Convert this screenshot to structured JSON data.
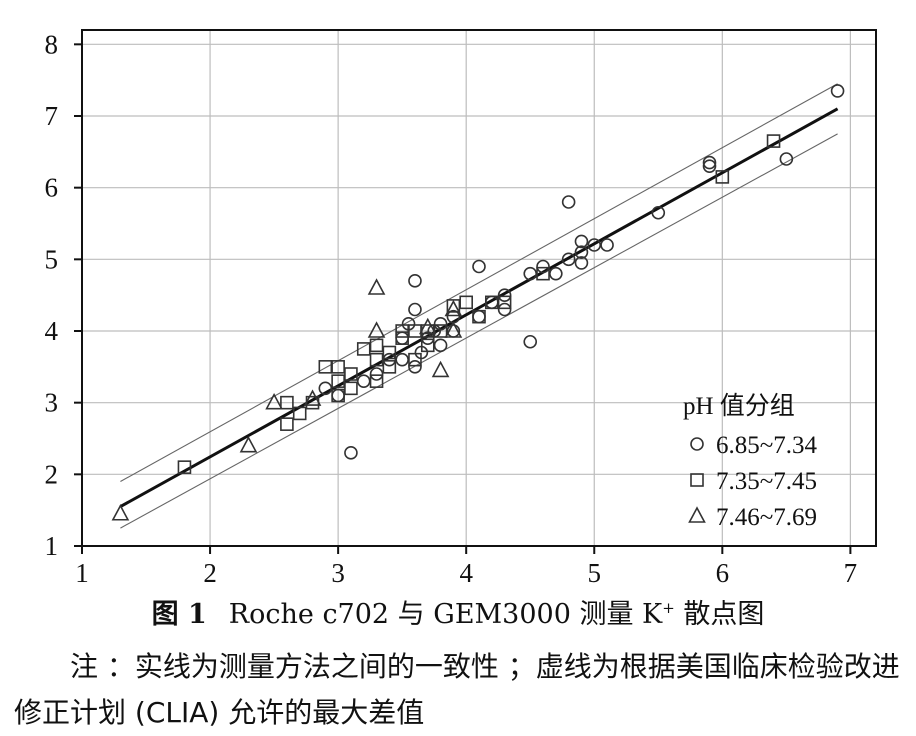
{
  "chart_data": {
    "type": "scatter",
    "xlim": [
      1,
      7.2
    ],
    "ylim": [
      1,
      8.2
    ],
    "x_ticks": [
      "1",
      "2",
      "3",
      "4",
      "5",
      "6",
      "7"
    ],
    "y_ticks": [
      "1",
      "2",
      "3",
      "4",
      "5",
      "6",
      "7",
      "8"
    ],
    "grid": true,
    "legend_position": "bottom-right",
    "legend_title": "pH 值分组",
    "series": [
      {
        "name": "6.85~7.34",
        "marker": "circle",
        "points": [
          [
            2.9,
            3.2
          ],
          [
            3.0,
            3.1
          ],
          [
            3.1,
            2.3
          ],
          [
            3.2,
            3.3
          ],
          [
            3.3,
            3.4
          ],
          [
            3.4,
            3.6
          ],
          [
            3.5,
            3.9
          ],
          [
            3.5,
            3.6
          ],
          [
            3.55,
            4.1
          ],
          [
            3.6,
            4.3
          ],
          [
            3.6,
            4.7
          ],
          [
            3.6,
            3.5
          ],
          [
            3.65,
            3.7
          ],
          [
            3.7,
            3.9
          ],
          [
            3.75,
            4.0
          ],
          [
            3.8,
            4.1
          ],
          [
            3.8,
            3.8
          ],
          [
            3.9,
            4.0
          ],
          [
            3.9,
            4.2
          ],
          [
            4.1,
            4.9
          ],
          [
            4.1,
            4.2
          ],
          [
            4.2,
            4.4
          ],
          [
            4.3,
            4.5
          ],
          [
            4.3,
            4.3
          ],
          [
            4.5,
            3.85
          ],
          [
            4.5,
            4.8
          ],
          [
            4.6,
            4.9
          ],
          [
            4.7,
            4.8
          ],
          [
            4.8,
            5.8
          ],
          [
            4.8,
            5.0
          ],
          [
            4.9,
            5.1
          ],
          [
            4.9,
            5.25
          ],
          [
            4.9,
            4.95
          ],
          [
            5.0,
            5.2
          ],
          [
            5.1,
            5.2
          ],
          [
            5.5,
            5.65
          ],
          [
            5.9,
            6.3
          ],
          [
            5.9,
            6.35
          ],
          [
            6.5,
            6.4
          ],
          [
            6.9,
            7.35
          ]
        ]
      },
      {
        "name": "7.35~7.45",
        "marker": "square",
        "points": [
          [
            1.8,
            2.1
          ],
          [
            2.6,
            2.7
          ],
          [
            2.6,
            3.0
          ],
          [
            2.7,
            2.85
          ],
          [
            2.8,
            3.0
          ],
          [
            2.9,
            3.5
          ],
          [
            3.0,
            3.1
          ],
          [
            3.0,
            3.3
          ],
          [
            3.0,
            3.5
          ],
          [
            3.1,
            3.4
          ],
          [
            3.1,
            3.2
          ],
          [
            3.2,
            3.75
          ],
          [
            3.3,
            3.3
          ],
          [
            3.3,
            3.6
          ],
          [
            3.3,
            3.8
          ],
          [
            3.4,
            3.5
          ],
          [
            3.4,
            3.7
          ],
          [
            3.5,
            3.9
          ],
          [
            3.5,
            4.0
          ],
          [
            3.6,
            3.6
          ],
          [
            3.6,
            4.0
          ],
          [
            3.7,
            3.8
          ],
          [
            3.7,
            4.0
          ],
          [
            3.8,
            4.0
          ],
          [
            3.9,
            4.35
          ],
          [
            4.0,
            4.4
          ],
          [
            4.1,
            4.2
          ],
          [
            4.2,
            4.4
          ],
          [
            4.3,
            4.4
          ],
          [
            4.6,
            4.8
          ],
          [
            6.0,
            6.15
          ],
          [
            6.4,
            6.65
          ]
        ]
      },
      {
        "name": "7.46~7.69",
        "marker": "triangle",
        "points": [
          [
            1.3,
            1.45
          ],
          [
            2.3,
            2.4
          ],
          [
            2.5,
            3.0
          ],
          [
            2.8,
            3.05
          ],
          [
            3.3,
            4.0
          ],
          [
            3.3,
            4.6
          ],
          [
            3.7,
            4.05
          ],
          [
            3.8,
            3.45
          ],
          [
            3.9,
            4.0
          ],
          [
            3.9,
            4.3
          ]
        ]
      }
    ],
    "fit_line": [
      [
        1.3,
        1.55
      ],
      [
        6.9,
        7.1
      ]
    ],
    "upper_limit": [
      [
        1.3,
        1.9
      ],
      [
        6.9,
        7.45
      ]
    ],
    "lower_limit": [
      [
        1.3,
        1.25
      ],
      [
        6.9,
        6.75
      ]
    ]
  },
  "caption": {
    "figure_no": "图 1",
    "title_pre": "Roche c702 与 GEM3000 测量 K",
    "title_sup": "+",
    "title_post": " 散点图"
  },
  "note": "注 ：实线为测量方法之间的一致性 ；虚线为根据美国临床检验改进修正计划 (CLIA) 允许的最大差值"
}
